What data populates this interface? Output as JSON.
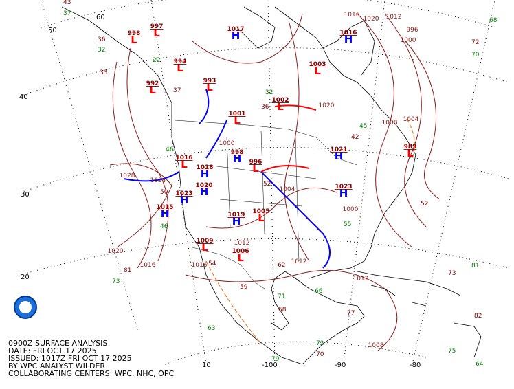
{
  "caption": [
    "0900Z SURFACE ANALYSIS",
    "DATE: FRI OCT 17 2025",
    "ISSUED: 1017Z FRI OCT 17 2025",
    "BY WPC ANALYST WILDER",
    "COLLABORATING CENTERS: WPC, NHC, OPC"
  ],
  "latitude_labels": [
    "60",
    "50",
    "40",
    "30",
    "20",
    "10"
  ],
  "longitude_labels": [
    "-100",
    "-90",
    "-80"
  ],
  "pressure_centers": [
    {
      "symbol": "H",
      "value": "1017"
    },
    {
      "symbol": "L",
      "value": "997"
    },
    {
      "symbol": "L",
      "value": "998"
    },
    {
      "symbol": "L",
      "value": "994"
    },
    {
      "symbol": "L",
      "value": "992"
    },
    {
      "symbol": "L",
      "value": "993"
    },
    {
      "symbol": "H",
      "value": "1016"
    },
    {
      "symbol": "L",
      "value": "1003"
    },
    {
      "symbol": "L",
      "value": "1002"
    },
    {
      "symbol": "L",
      "value": "1001"
    },
    {
      "symbol": "H",
      "value": "1021"
    },
    {
      "symbol": "L",
      "value": "989"
    },
    {
      "symbol": "L",
      "value": "996"
    },
    {
      "symbol": "H",
      "value": "998"
    },
    {
      "symbol": "H",
      "value": "1018"
    },
    {
      "symbol": "H",
      "value": "1020"
    },
    {
      "symbol": "H",
      "value": "1023"
    },
    {
      "symbol": "H",
      "value": "1015"
    },
    {
      "symbol": "H",
      "value": "1019"
    },
    {
      "symbol": "L",
      "value": "1005"
    },
    {
      "symbol": "L",
      "value": "1009"
    },
    {
      "symbol": "L",
      "value": "1006"
    },
    {
      "symbol": "H",
      "value": "1023"
    },
    {
      "symbol": "L",
      "value": "1016"
    }
  ],
  "isobar_labels": [
    "1028",
    "1024",
    "1020",
    "1016",
    "1012",
    "1008",
    "1004",
    "1000",
    "996",
    "1012",
    "1020",
    "1016",
    "1012",
    "1008",
    "1004",
    "1000",
    "1020",
    "1000",
    "1016",
    "1012"
  ],
  "station_values": [
    "43",
    "37",
    "36",
    "32",
    "33",
    "22",
    "37",
    "32",
    "36",
    "45",
    "42",
    "46",
    "52",
    "68",
    "72",
    "70",
    "62",
    "66",
    "77",
    "75",
    "73",
    "81",
    "82",
    "64",
    "50",
    "46",
    "54",
    "63",
    "59",
    "71",
    "68",
    "55",
    "52",
    "72",
    "70",
    "79",
    "81",
    "73"
  ]
}
